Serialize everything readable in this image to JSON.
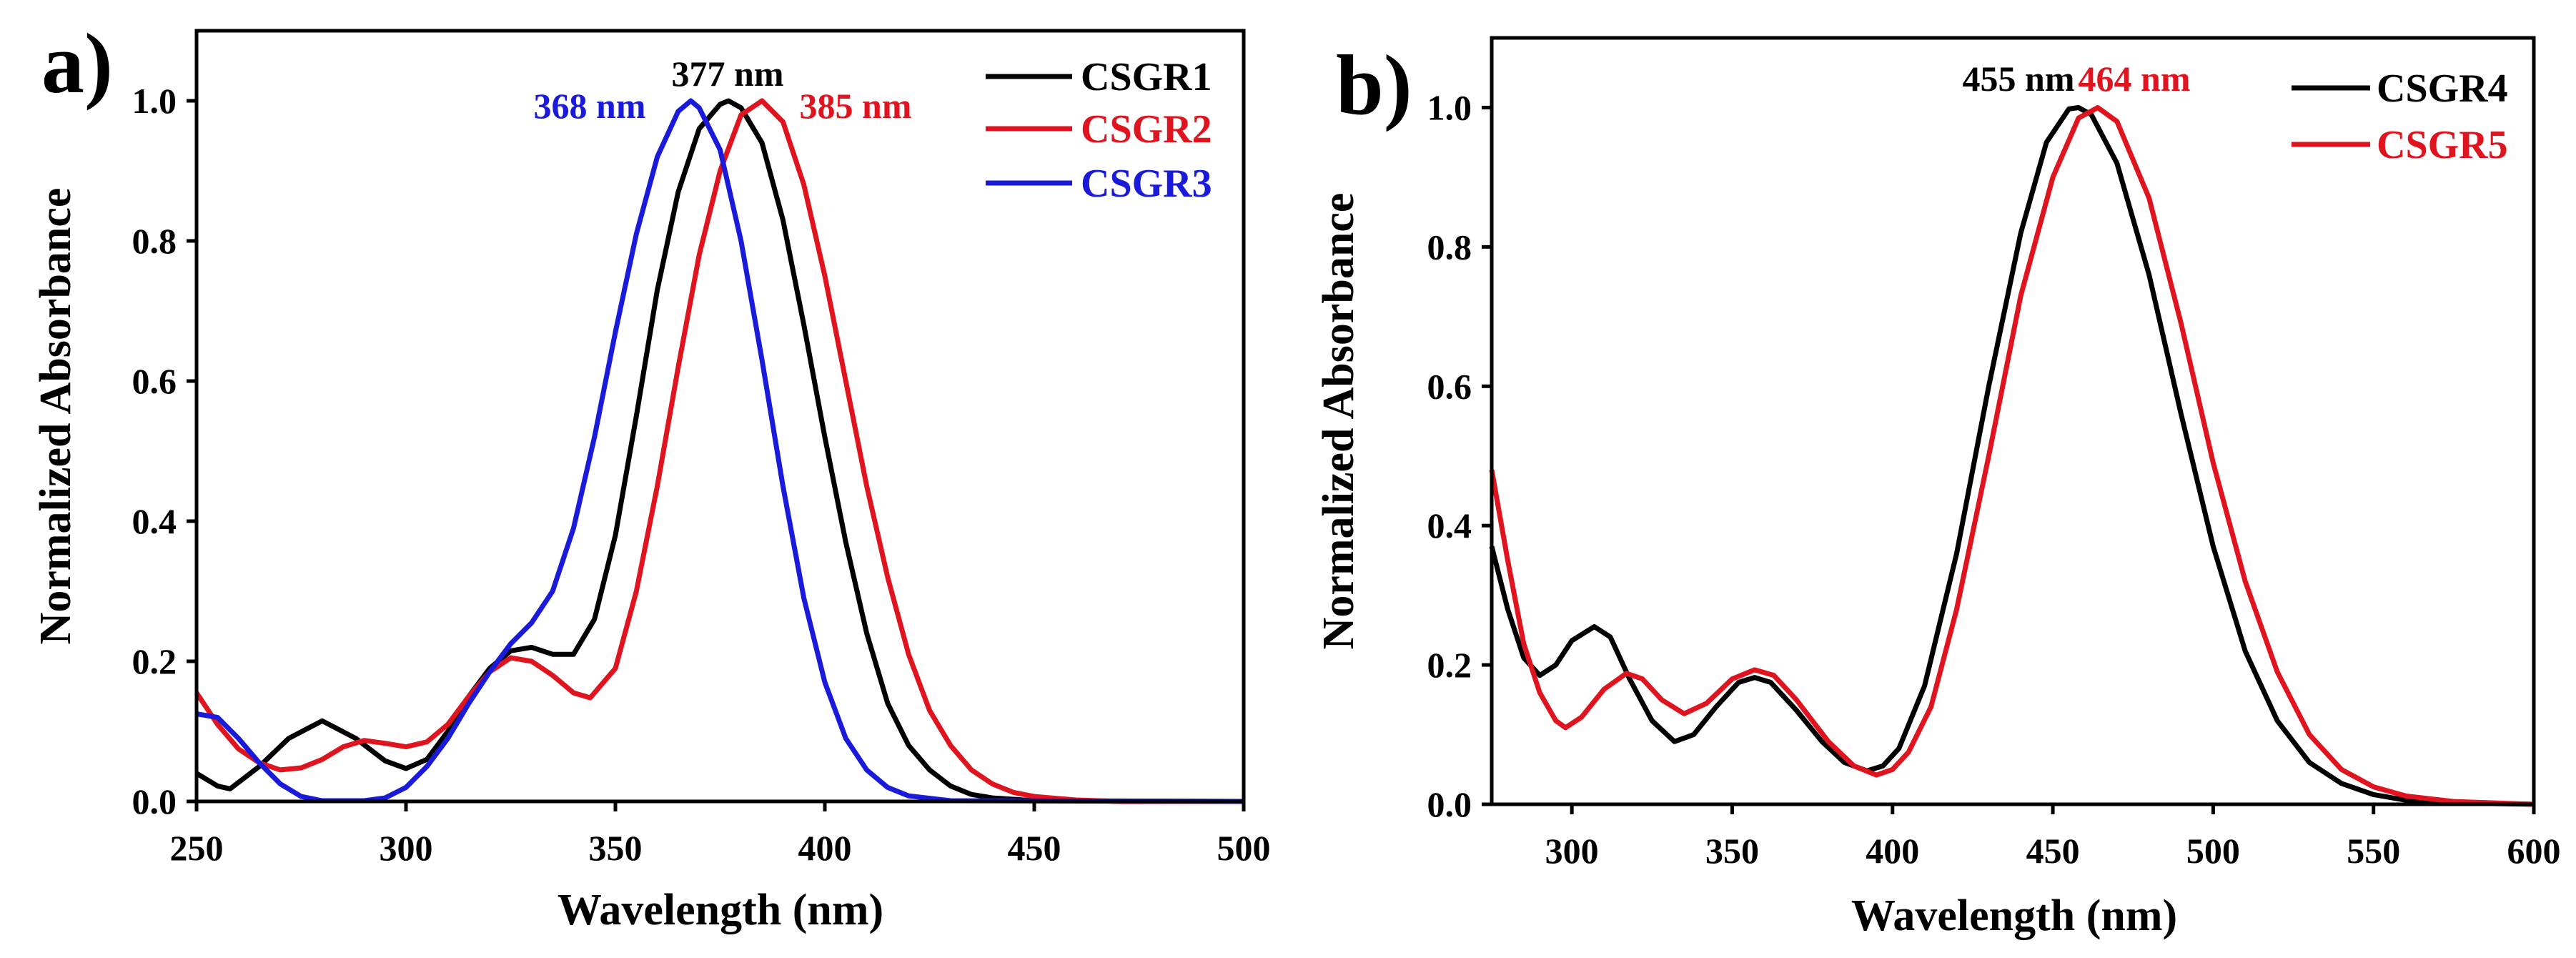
{
  "chart_data": [
    {
      "type": "line",
      "panel_label": "a)",
      "xlabel": "Wavelength (nm)",
      "ylabel": "Normalized Absorbance",
      "xlim": [
        250,
        500
      ],
      "ylim": [
        0,
        1.1
      ],
      "xticks": [
        250,
        300,
        350,
        400,
        450,
        500
      ],
      "yticks": [
        0.0,
        0.2,
        0.4,
        0.6,
        0.8,
        1.0
      ],
      "grid": false,
      "legend_position": "top-right",
      "annotations": [
        {
          "text": "377 nm",
          "color": "#000000"
        },
        {
          "text": "368 nm",
          "color": "#1a1adb"
        },
        {
          "text": "385 nm",
          "color": "#e0141e"
        }
      ],
      "series": [
        {
          "name": "CSGR1",
          "color": "#000000",
          "x": [
            250,
            255,
            258,
            265,
            272,
            280,
            288,
            295,
            300,
            305,
            310,
            315,
            320,
            325,
            330,
            335,
            340,
            345,
            350,
            355,
            360,
            365,
            370,
            375,
            377,
            380,
            385,
            390,
            395,
            400,
            405,
            410,
            415,
            420,
            425,
            430,
            435,
            440,
            450,
            500
          ],
          "y": [
            0.04,
            0.022,
            0.018,
            0.05,
            0.09,
            0.115,
            0.09,
            0.058,
            0.047,
            0.06,
            0.1,
            0.15,
            0.19,
            0.215,
            0.22,
            0.21,
            0.21,
            0.26,
            0.38,
            0.55,
            0.73,
            0.87,
            0.96,
            0.995,
            1.0,
            0.99,
            0.94,
            0.83,
            0.68,
            0.52,
            0.37,
            0.24,
            0.14,
            0.08,
            0.045,
            0.022,
            0.01,
            0.005,
            0.001,
            0.0
          ]
        },
        {
          "name": "CSGR2",
          "color": "#e0141e",
          "x": [
            250,
            255,
            260,
            265,
            270,
            275,
            280,
            285,
            290,
            295,
            300,
            305,
            310,
            315,
            320,
            325,
            330,
            335,
            340,
            344,
            350,
            355,
            360,
            365,
            370,
            375,
            380,
            385,
            390,
            395,
            400,
            405,
            410,
            415,
            420,
            425,
            430,
            435,
            440,
            445,
            450,
            460,
            470,
            500
          ],
          "y": [
            0.155,
            0.11,
            0.075,
            0.055,
            0.045,
            0.048,
            0.06,
            0.078,
            0.087,
            0.083,
            0.078,
            0.085,
            0.11,
            0.15,
            0.185,
            0.205,
            0.2,
            0.18,
            0.155,
            0.148,
            0.19,
            0.3,
            0.45,
            0.62,
            0.78,
            0.9,
            0.98,
            1.0,
            0.97,
            0.88,
            0.75,
            0.6,
            0.45,
            0.32,
            0.21,
            0.13,
            0.08,
            0.045,
            0.025,
            0.013,
            0.007,
            0.002,
            0.0,
            0.0
          ]
        },
        {
          "name": "CSGR3",
          "color": "#1a1adb",
          "x": [
            250,
            255,
            260,
            265,
            270,
            275,
            280,
            290,
            295,
            300,
            305,
            310,
            315,
            320,
            325,
            330,
            335,
            340,
            345,
            350,
            355,
            360,
            365,
            368,
            370,
            375,
            380,
            385,
            390,
            395,
            400,
            405,
            410,
            415,
            420,
            430,
            500
          ],
          "y": [
            0.125,
            0.12,
            0.09,
            0.055,
            0.025,
            0.007,
            0.001,
            0.001,
            0.005,
            0.02,
            0.05,
            0.09,
            0.14,
            0.185,
            0.225,
            0.255,
            0.3,
            0.39,
            0.52,
            0.67,
            0.81,
            0.92,
            0.985,
            1.0,
            0.99,
            0.93,
            0.8,
            0.63,
            0.45,
            0.29,
            0.17,
            0.09,
            0.045,
            0.02,
            0.008,
            0.001,
            0.0
          ]
        }
      ]
    },
    {
      "type": "line",
      "panel_label": "b)",
      "xlabel": "Wavelength (nm)",
      "ylabel": "Normalized Absorbance",
      "xlim": [
        275,
        600
      ],
      "ylim": [
        0,
        1.1
      ],
      "xticks": [
        300,
        350,
        400,
        450,
        500,
        550,
        600
      ],
      "yticks": [
        0.0,
        0.2,
        0.4,
        0.6,
        0.8,
        1.0
      ],
      "grid": false,
      "legend_position": "top-right",
      "annotations": [
        {
          "text": "455 nm",
          "color": "#000000"
        },
        {
          "text": "464 nm",
          "color": "#e0141e"
        }
      ],
      "series": [
        {
          "name": "CSGR4",
          "color": "#000000",
          "x": [
            275,
            280,
            285,
            290,
            295,
            300,
            307,
            312,
            318,
            325,
            332,
            338,
            345,
            352,
            357,
            362,
            370,
            378,
            385,
            392,
            397,
            402,
            410,
            420,
            430,
            440,
            448,
            455,
            458,
            462,
            470,
            480,
            490,
            500,
            510,
            520,
            530,
            540,
            550,
            560,
            575,
            600
          ],
          "y": [
            0.37,
            0.28,
            0.21,
            0.185,
            0.2,
            0.235,
            0.255,
            0.24,
            0.18,
            0.12,
            0.09,
            0.1,
            0.14,
            0.175,
            0.182,
            0.175,
            0.135,
            0.09,
            0.06,
            0.048,
            0.055,
            0.08,
            0.17,
            0.36,
            0.6,
            0.82,
            0.95,
            0.998,
            1.0,
            0.99,
            0.92,
            0.76,
            0.56,
            0.37,
            0.22,
            0.12,
            0.06,
            0.03,
            0.014,
            0.006,
            0.002,
            0.0
          ]
        },
        {
          "name": "CSGR5",
          "color": "#e0141e",
          "x": [
            275,
            280,
            285,
            290,
            295,
            298,
            303,
            310,
            317,
            322,
            328,
            335,
            342,
            350,
            357,
            363,
            370,
            380,
            388,
            395,
            400,
            405,
            412,
            420,
            430,
            440,
            450,
            458,
            464,
            470,
            480,
            490,
            500,
            510,
            520,
            530,
            540,
            550,
            560,
            575,
            600
          ],
          "y": [
            0.48,
            0.35,
            0.23,
            0.16,
            0.12,
            0.11,
            0.125,
            0.165,
            0.188,
            0.18,
            0.15,
            0.13,
            0.145,
            0.18,
            0.193,
            0.185,
            0.15,
            0.09,
            0.055,
            0.042,
            0.05,
            0.075,
            0.14,
            0.28,
            0.5,
            0.73,
            0.9,
            0.985,
            1.0,
            0.98,
            0.87,
            0.69,
            0.49,
            0.32,
            0.19,
            0.1,
            0.05,
            0.025,
            0.012,
            0.004,
            0.0
          ]
        }
      ]
    }
  ]
}
